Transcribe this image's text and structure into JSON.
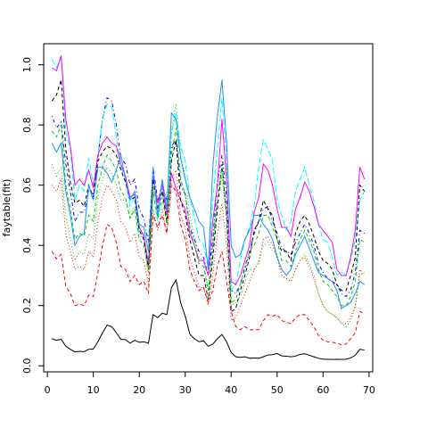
{
  "chart_data": {
    "type": "line",
    "title": "",
    "xlabel": "",
    "ylabel": "faytable(fit)",
    "xlim": [
      -0.8,
      70.8
    ],
    "ylim": [
      -0.02,
      1.07
    ],
    "xticks": [
      0,
      10,
      20,
      30,
      40,
      50,
      60,
      70
    ],
    "yticks": [
      0.0,
      0.2,
      0.4,
      0.6,
      0.8,
      1.0
    ],
    "ytick_labels": [
      "0.0",
      "0.2",
      "0.4",
      "0.6",
      "0.8",
      "1.0"
    ],
    "grid": false,
    "x": [
      1,
      2,
      3,
      4,
      5,
      6,
      7,
      8,
      9,
      10,
      11,
      12,
      13,
      14,
      15,
      16,
      17,
      18,
      19,
      20,
      21,
      22,
      23,
      24,
      25,
      26,
      27,
      28,
      29,
      30,
      31,
      32,
      33,
      34,
      35,
      36,
      37,
      38,
      39,
      40,
      41,
      42,
      43,
      44,
      45,
      46,
      47,
      48,
      49,
      50,
      51,
      52,
      53,
      54,
      55,
      56,
      57,
      58,
      59,
      60,
      61,
      62,
      63,
      64,
      65,
      66,
      67,
      68,
      69
    ],
    "series": [
      {
        "color": "#000000",
        "dash": "solid",
        "values": [
          0.09,
          0.085,
          0.088,
          0.065,
          0.055,
          0.046,
          0.048,
          0.047,
          0.055,
          0.056,
          0.08,
          0.11,
          0.135,
          0.13,
          0.11,
          0.088,
          0.087,
          0.075,
          0.085,
          0.078,
          0.08,
          0.075,
          0.17,
          0.16,
          0.175,
          0.17,
          0.26,
          0.285,
          0.21,
          0.165,
          0.105,
          0.09,
          0.08,
          0.083,
          0.065,
          0.072,
          0.09,
          0.104,
          0.08,
          0.044,
          0.03,
          0.028,
          0.03,
          0.025,
          0.026,
          0.025,
          0.03,
          0.036,
          0.037,
          0.041,
          0.033,
          0.032,
          0.03,
          0.032,
          0.038,
          0.04,
          0.035,
          0.03,
          0.025,
          0.022,
          0.022,
          0.021,
          0.022,
          0.021,
          0.022,
          0.026,
          0.035,
          0.055,
          0.052
        ]
      },
      {
        "color": "#ff0000",
        "dash": "dashed",
        "values": [
          0.38,
          0.355,
          0.37,
          0.265,
          0.24,
          0.2,
          0.205,
          0.2,
          0.235,
          0.23,
          0.31,
          0.4,
          0.47,
          0.46,
          0.41,
          0.33,
          0.32,
          0.28,
          0.3,
          0.27,
          0.28,
          0.24,
          0.5,
          0.46,
          0.5,
          0.44,
          0.6,
          0.58,
          0.47,
          0.42,
          0.32,
          0.28,
          0.25,
          0.26,
          0.21,
          0.25,
          0.33,
          0.38,
          0.28,
          0.18,
          0.13,
          0.12,
          0.13,
          0.12,
          0.12,
          0.12,
          0.15,
          0.17,
          0.165,
          0.17,
          0.15,
          0.145,
          0.14,
          0.16,
          0.17,
          0.17,
          0.15,
          0.13,
          0.1,
          0.085,
          0.08,
          0.078,
          0.075,
          0.07,
          0.072,
          0.09,
          0.11,
          0.18,
          0.175
        ]
      },
      {
        "color": "#00cd00",
        "dash": "dotted",
        "values": [
          0.67,
          0.63,
          0.66,
          0.5,
          0.42,
          0.35,
          0.38,
          0.37,
          0.44,
          0.42,
          0.56,
          0.62,
          0.66,
          0.64,
          0.6,
          0.55,
          0.55,
          0.49,
          0.53,
          0.43,
          0.43,
          0.33,
          0.6,
          0.52,
          0.58,
          0.5,
          0.78,
          0.87,
          0.7,
          0.63,
          0.5,
          0.42,
          0.36,
          0.35,
          0.25,
          0.38,
          0.55,
          0.63,
          0.5,
          0.2,
          0.21,
          0.23,
          0.28,
          0.32,
          0.32,
          0.35,
          0.4,
          0.41,
          0.38,
          0.37,
          0.3,
          0.29,
          0.28,
          0.32,
          0.35,
          0.37,
          0.34,
          0.3,
          0.24,
          0.2,
          0.18,
          0.17,
          0.16,
          0.14,
          0.13,
          0.15,
          0.19,
          0.3,
          0.31
        ]
      },
      {
        "color": "#0000ff",
        "dash": "dashdot",
        "values": [
          0.83,
          0.79,
          0.81,
          0.67,
          0.58,
          0.48,
          0.51,
          0.51,
          0.58,
          0.57,
          0.69,
          0.82,
          0.89,
          0.88,
          0.8,
          0.69,
          0.67,
          0.6,
          0.62,
          0.52,
          0.49,
          0.41,
          0.66,
          0.55,
          0.6,
          0.55,
          0.73,
          0.75,
          0.6,
          0.57,
          0.46,
          0.42,
          0.38,
          0.36,
          0.3,
          0.42,
          0.61,
          0.7,
          0.56,
          0.25,
          0.24,
          0.27,
          0.33,
          0.38,
          0.44,
          0.48,
          0.52,
          0.53,
          0.48,
          0.44,
          0.39,
          0.38,
          0.37,
          0.41,
          0.44,
          0.47,
          0.44,
          0.4,
          0.34,
          0.31,
          0.29,
          0.28,
          0.27,
          0.24,
          0.23,
          0.25,
          0.31,
          0.45,
          0.44
        ]
      },
      {
        "color": "#00ffff",
        "dash": "longdash",
        "values": [
          1.02,
          0.99,
          1.03,
          0.78,
          0.72,
          0.55,
          0.6,
          0.58,
          0.69,
          0.6,
          0.7,
          0.82,
          0.87,
          0.86,
          0.76,
          0.66,
          0.62,
          0.53,
          0.56,
          0.44,
          0.44,
          0.32,
          0.58,
          0.48,
          0.61,
          0.52,
          0.77,
          0.84,
          0.73,
          0.68,
          0.56,
          0.49,
          0.42,
          0.4,
          0.33,
          0.55,
          0.72,
          0.89,
          0.68,
          0.25,
          0.27,
          0.35,
          0.42,
          0.46,
          0.53,
          0.66,
          0.75,
          0.72,
          0.68,
          0.55,
          0.5,
          0.45,
          0.48,
          0.58,
          0.62,
          0.66,
          0.6,
          0.55,
          0.47,
          0.42,
          0.41,
          0.36,
          0.3,
          0.31,
          0.3,
          0.35,
          0.42,
          0.55,
          0.58
        ]
      },
      {
        "color": "#ff00ff",
        "dash": "solid",
        "values": [
          0.99,
          0.98,
          1.03,
          0.82,
          0.73,
          0.6,
          0.62,
          0.6,
          0.65,
          0.59,
          0.7,
          0.74,
          0.76,
          0.74,
          0.73,
          0.67,
          0.63,
          0.56,
          0.57,
          0.46,
          0.43,
          0.34,
          0.63,
          0.54,
          0.6,
          0.5,
          0.64,
          0.59,
          0.55,
          0.52,
          0.44,
          0.4,
          0.35,
          0.35,
          0.3,
          0.48,
          0.6,
          0.82,
          0.62,
          0.28,
          0.27,
          0.3,
          0.35,
          0.4,
          0.51,
          0.56,
          0.67,
          0.65,
          0.6,
          0.52,
          0.46,
          0.46,
          0.43,
          0.52,
          0.56,
          0.61,
          0.58,
          0.53,
          0.47,
          0.45,
          0.43,
          0.41,
          0.32,
          0.3,
          0.3,
          0.36,
          0.45,
          0.66,
          0.62
        ]
      },
      {
        "color": "#000000",
        "dash": "dashed",
        "values": [
          0.88,
          0.9,
          0.95,
          0.72,
          0.61,
          0.54,
          0.55,
          0.53,
          0.6,
          0.56,
          0.68,
          0.71,
          0.73,
          0.72,
          0.7,
          0.65,
          0.61,
          0.55,
          0.56,
          0.45,
          0.42,
          0.32,
          0.62,
          0.52,
          0.58,
          0.48,
          0.68,
          0.75,
          0.55,
          0.5,
          0.42,
          0.36,
          0.3,
          0.3,
          0.22,
          0.36,
          0.52,
          0.67,
          0.5,
          0.18,
          0.19,
          0.25,
          0.3,
          0.36,
          0.45,
          0.48,
          0.55,
          0.52,
          0.5,
          0.42,
          0.38,
          0.38,
          0.35,
          0.44,
          0.48,
          0.5,
          0.47,
          0.43,
          0.38,
          0.35,
          0.34,
          0.32,
          0.27,
          0.25,
          0.25,
          0.3,
          0.36,
          0.6,
          0.58
        ]
      },
      {
        "color": "#ff0000",
        "dash": "dotted",
        "values": [
          0.6,
          0.58,
          0.62,
          0.44,
          0.38,
          0.32,
          0.33,
          0.32,
          0.38,
          0.36,
          0.48,
          0.56,
          0.6,
          0.58,
          0.55,
          0.48,
          0.46,
          0.41,
          0.44,
          0.36,
          0.35,
          0.27,
          0.52,
          0.45,
          0.52,
          0.44,
          0.62,
          0.65,
          0.5,
          0.46,
          0.36,
          0.31,
          0.26,
          0.26,
          0.2,
          0.3,
          0.44,
          0.54,
          0.4,
          0.15,
          0.16,
          0.2,
          0.24,
          0.28,
          0.32,
          0.34,
          0.42,
          0.43,
          0.4,
          0.36,
          0.3,
          0.29,
          0.28,
          0.32,
          0.35,
          0.36,
          0.33,
          0.29,
          0.24,
          0.2,
          0.18,
          0.17,
          0.16,
          0.14,
          0.14,
          0.16,
          0.2,
          0.32,
          0.3
        ]
      },
      {
        "color": "#00cd00",
        "dash": "dashed",
        "values": [
          0.78,
          0.76,
          0.8,
          0.6,
          0.52,
          0.42,
          0.44,
          0.43,
          0.5,
          0.48,
          0.6,
          0.66,
          0.7,
          0.68,
          0.65,
          0.58,
          0.56,
          0.49,
          0.52,
          0.42,
          0.4,
          0.31,
          0.58,
          0.49,
          0.56,
          0.47,
          0.7,
          0.79,
          0.62,
          0.57,
          0.46,
          0.4,
          0.34,
          0.33,
          0.25,
          0.4,
          0.56,
          0.66,
          0.5,
          0.21,
          0.22,
          0.27,
          0.32,
          0.38,
          0.4,
          0.44,
          0.5,
          0.5,
          0.46,
          0.42,
          0.35,
          0.35,
          0.33,
          0.38,
          0.42,
          0.45,
          0.42,
          0.38,
          0.32,
          0.28,
          0.27,
          0.25,
          0.23,
          0.2,
          0.2,
          0.23,
          0.28,
          0.42,
          0.41
        ]
      },
      {
        "color": "#1e90ff",
        "dash": "solid",
        "values": [
          0.74,
          0.71,
          0.74,
          0.58,
          0.5,
          0.4,
          0.43,
          0.44,
          0.6,
          0.55,
          0.66,
          0.66,
          0.64,
          0.61,
          0.65,
          0.7,
          0.62,
          0.55,
          0.58,
          0.47,
          0.46,
          0.38,
          0.66,
          0.5,
          0.62,
          0.52,
          0.84,
          0.82,
          0.69,
          0.62,
          0.56,
          0.52,
          0.48,
          0.46,
          0.32,
          0.66,
          0.83,
          0.95,
          0.74,
          0.4,
          0.36,
          0.37,
          0.42,
          0.45,
          0.5,
          0.5,
          0.47,
          0.45,
          0.42,
          0.36,
          0.32,
          0.3,
          0.32,
          0.37,
          0.4,
          0.43,
          0.39,
          0.35,
          0.31,
          0.3,
          0.29,
          0.28,
          0.25,
          0.19,
          0.2,
          0.21,
          0.24,
          0.28,
          0.27
        ]
      }
    ]
  }
}
